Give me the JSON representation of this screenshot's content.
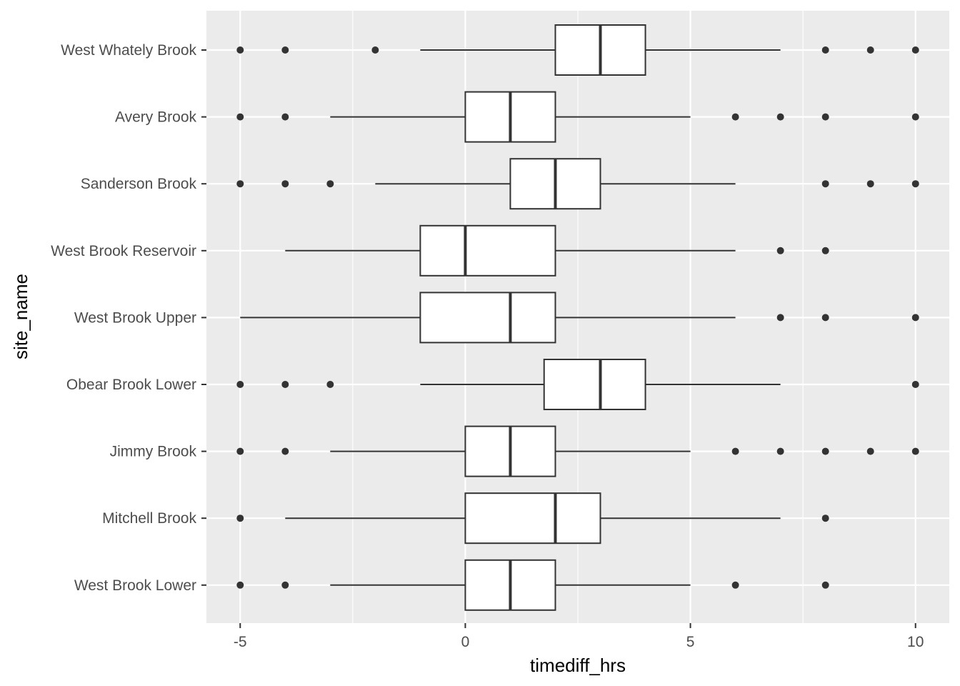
{
  "chart_data": {
    "type": "boxplot",
    "orientation": "horizontal",
    "xlabel": "timediff_hrs",
    "ylabel": "site_name",
    "xlim": [
      -5.75,
      10.75
    ],
    "x_ticks": [
      -5,
      0,
      5,
      10
    ],
    "x_tick_labels": [
      "-5",
      "0",
      "5",
      "10"
    ],
    "grid": true,
    "colors": {
      "panel": "#ebebeb",
      "grid_major": "#ffffff",
      "box_fill": "#ffffff",
      "line": "#333333",
      "point": "#333333"
    },
    "series": [
      {
        "name": "West Whately Brook",
        "whisker_low": -1,
        "q1": 2,
        "median": 3,
        "q3": 4,
        "whisker_high": 7,
        "outliers": [
          -5,
          -4,
          -2,
          8,
          9,
          10
        ]
      },
      {
        "name": "Avery Brook",
        "whisker_low": -3,
        "q1": 0,
        "median": 1,
        "q3": 2,
        "whisker_high": 5,
        "outliers": [
          -5,
          -4,
          6,
          7,
          8,
          10
        ]
      },
      {
        "name": "Sanderson Brook",
        "whisker_low": -2,
        "q1": 1,
        "median": 2,
        "q3": 3,
        "whisker_high": 6,
        "outliers": [
          -5,
          -4,
          -3,
          8,
          9,
          10
        ]
      },
      {
        "name": "West Brook Reservoir",
        "whisker_low": -4,
        "q1": -1,
        "median": 0,
        "q3": 2,
        "whisker_high": 6,
        "outliers": [
          7,
          8
        ]
      },
      {
        "name": "West Brook Upper",
        "whisker_low": -5,
        "q1": -1,
        "median": 1,
        "q3": 2,
        "whisker_high": 6,
        "outliers": [
          7,
          8,
          10
        ]
      },
      {
        "name": "Obear Brook Lower",
        "whisker_low": -1,
        "q1": 1.75,
        "median": 3,
        "q3": 4,
        "whisker_high": 7,
        "outliers": [
          -5,
          -4,
          -3,
          10
        ]
      },
      {
        "name": "Jimmy Brook",
        "whisker_low": -3,
        "q1": 0,
        "median": 1,
        "q3": 2,
        "whisker_high": 5,
        "outliers": [
          -5,
          -4,
          6,
          7,
          8,
          9,
          10
        ]
      },
      {
        "name": "Mitchell Brook",
        "whisker_low": -4,
        "q1": 0,
        "median": 2,
        "q3": 3,
        "whisker_high": 7,
        "outliers": [
          -5,
          8
        ]
      },
      {
        "name": "West Brook Lower",
        "whisker_low": -3,
        "q1": 0,
        "median": 1,
        "q3": 2,
        "whisker_high": 5,
        "outliers": [
          -5,
          -4,
          6,
          8
        ]
      }
    ]
  }
}
